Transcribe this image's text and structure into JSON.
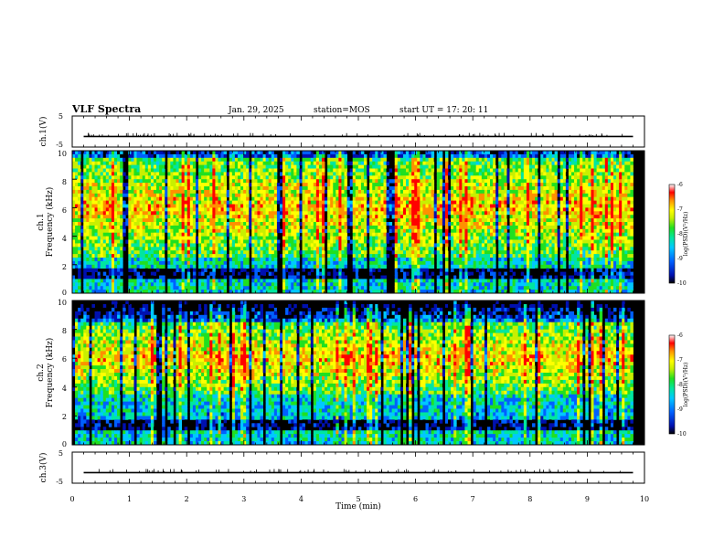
{
  "header": {
    "title": "VLF Spectra",
    "date": "Jan. 29, 2025",
    "station": "station=MOS",
    "start": "start UT =  17: 20: 11"
  },
  "colors": {
    "frame": "#000000",
    "colormap": [
      "#000000",
      "#0010b0",
      "#0060ff",
      "#00c8ff",
      "#00e6a0",
      "#20e020",
      "#c8f000",
      "#ffff00",
      "#ff9000",
      "#ff0000",
      "#ffffff"
    ]
  },
  "chart_data": {
    "type": "heatmap",
    "x_label": "Time (min)",
    "x_range": [
      0,
      10
    ],
    "x_ticks": [
      "0",
      "1",
      "2",
      "3",
      "4",
      "5",
      "6",
      "7",
      "8",
      "9",
      "10"
    ],
    "panels": [
      {
        "kind": "waveform",
        "ylabel": "ch.1(V)",
        "y_range": [
          -5,
          5
        ],
        "y_ticks": [
          "5",
          "-5"
        ],
        "level": -1.6
      },
      {
        "kind": "spectrogram",
        "ylabel_line1": "ch.1",
        "ylabel_line2": "Frequency (kHz)",
        "y_range": [
          0,
          10
        ],
        "y_ticks": [
          "0",
          "2",
          "4",
          "6",
          "8",
          "10"
        ],
        "band_khz": [
          2.5,
          9.5
        ],
        "data_end_min": 9.8,
        "colorbar": {
          "label": "log(PSD)(V²/Hz)",
          "range": [
            -10,
            -6
          ],
          "ticks": [
            "-6",
            "-7",
            "-8",
            "-9",
            "-10"
          ]
        }
      },
      {
        "kind": "spectrogram",
        "ylabel_line1": "ch.2",
        "ylabel_line2": "Frequency (kHz)",
        "y_range": [
          0,
          10
        ],
        "y_ticks": [
          "0",
          "2",
          "4",
          "6",
          "8",
          "10"
        ],
        "band_khz": [
          3.5,
          8.5
        ],
        "data_end_min": 9.8,
        "colorbar": {
          "label": "log(PSD)(V²/Hz)",
          "range": [
            -10,
            -6
          ],
          "ticks": [
            "-6",
            "-7",
            "-8",
            "-9",
            "-10"
          ]
        }
      },
      {
        "kind": "waveform",
        "ylabel": "ch.3(V)",
        "y_range": [
          -5,
          5
        ],
        "y_ticks": [
          "5",
          "-5"
        ],
        "level": -1.6
      }
    ]
  }
}
